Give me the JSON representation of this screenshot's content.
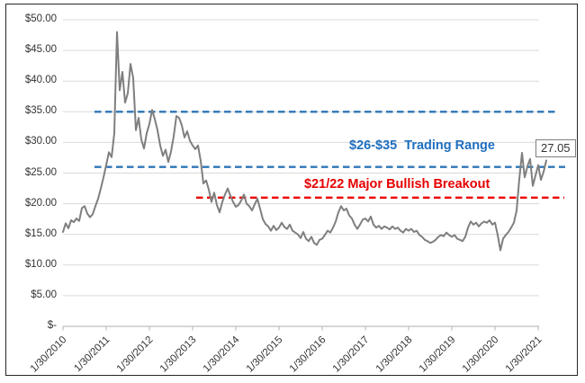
{
  "annotations": {
    "trading_range_label": "$26-$35  Trading Range",
    "breakout_label": "$21/22 Major Bullish Breakout",
    "last_price_label": "27.05"
  },
  "colors": {
    "price_line": "#7F7F7F",
    "trading_range_line": "#2E75B6",
    "trading_range_text": "#1F6FBF",
    "breakout_line": "#EC0000",
    "breakout_text": "#E60000",
    "gridline": "#D9D9D9",
    "axis": "#BFBFBF",
    "tick_text": "#333333",
    "frame_border": "#262626",
    "last_price_text": "#333333"
  },
  "chart_data": {
    "type": "line",
    "title": "",
    "xlabel": "",
    "ylabel": "",
    "ylim": [
      0,
      50
    ],
    "grid": "horizontal",
    "legend": "none",
    "y_tick_values": [
      0,
      5,
      10,
      15,
      20,
      25,
      30,
      35,
      40,
      45,
      50
    ],
    "y_tick_labels": [
      "$-",
      "$5.00",
      "$10.00",
      "$15.00",
      "$20.00",
      "$25.00",
      "$30.00",
      "$35.00",
      "$40.00",
      "$45.00",
      "$50.00"
    ],
    "x_tick_labels": [
      "1/30/2010",
      "1/30/2011",
      "1/30/2012",
      "1/30/2013",
      "1/30/2014",
      "1/30/2015",
      "1/30/2016",
      "1/30/2017",
      "1/30/2018",
      "1/30/2019",
      "1/30/2020",
      "1/30/2021"
    ],
    "reference_lines": [
      {
        "value": 35,
        "style": "dashed",
        "color": "#2E75B6",
        "label": "$26-$35 Trading Range (upper)"
      },
      {
        "value": 26,
        "style": "dashed",
        "color": "#2E75B6",
        "label": "$26-$35 Trading Range (lower)"
      },
      {
        "value": 21,
        "style": "dashed",
        "color": "#EC0000",
        "label": "$21/22 Major Bullish Breakout"
      }
    ],
    "last_value": 27.05,
    "series": [
      {
        "name": "Price",
        "start_date": "1/30/2010",
        "end_date": "2/2021",
        "values": [
          15.4,
          16.8,
          16.0,
          17.3,
          17.0,
          17.6,
          17.2,
          19.3,
          19.6,
          18.4,
          17.8,
          18.3,
          19.6,
          20.8,
          22.5,
          24.3,
          26.3,
          28.4,
          27.6,
          31.5,
          48.0,
          38.5,
          41.5,
          36.5,
          38.0,
          42.8,
          40.5,
          32.0,
          34.0,
          30.5,
          29.0,
          31.5,
          33.0,
          35.3,
          33.8,
          32.0,
          29.5,
          27.8,
          28.8,
          26.8,
          28.5,
          31.0,
          34.3,
          34.0,
          32.8,
          30.8,
          31.8,
          30.3,
          29.5,
          28.9,
          29.5,
          27.0,
          23.3,
          23.8,
          22.3,
          20.3,
          21.8,
          19.8,
          18.6,
          20.3,
          21.5,
          22.5,
          21.3,
          20.3,
          19.5,
          19.8,
          20.5,
          21.5,
          20.0,
          19.6,
          18.9,
          19.9,
          20.8,
          19.2,
          17.5,
          16.7,
          16.3,
          15.6,
          16.4,
          15.7,
          16.1,
          16.9,
          16.2,
          15.9,
          16.6,
          15.6,
          15.3,
          15.0,
          14.4,
          15.4,
          14.3,
          13.9,
          14.6,
          13.6,
          13.3,
          14.1,
          14.3,
          14.9,
          15.6,
          15.3,
          16.1,
          17.1,
          18.6,
          19.6,
          18.9,
          19.2,
          18.1,
          17.6,
          16.6,
          15.9,
          16.6,
          17.4,
          17.6,
          17.1,
          17.9,
          16.6,
          16.1,
          16.4,
          15.9,
          16.3,
          16.1,
          15.8,
          16.3,
          15.9,
          16.1,
          15.6,
          15.3,
          15.9,
          15.6,
          15.9,
          15.4,
          15.6,
          14.9,
          14.6,
          14.1,
          13.9,
          13.6,
          13.8,
          14.1,
          14.6,
          14.9,
          14.7,
          15.3,
          14.9,
          14.6,
          14.9,
          14.3,
          14.1,
          13.9,
          14.6,
          16.1,
          17.1,
          16.6,
          16.9,
          16.3,
          16.8,
          17.1,
          16.9,
          17.3,
          16.6,
          16.9,
          14.9,
          12.4,
          14.3,
          14.9,
          15.4,
          16.1,
          16.9,
          18.9,
          24.0,
          28.3,
          24.3,
          26.1,
          27.3,
          22.9,
          24.6,
          26.3,
          23.9,
          25.2,
          27.05
        ]
      }
    ]
  }
}
